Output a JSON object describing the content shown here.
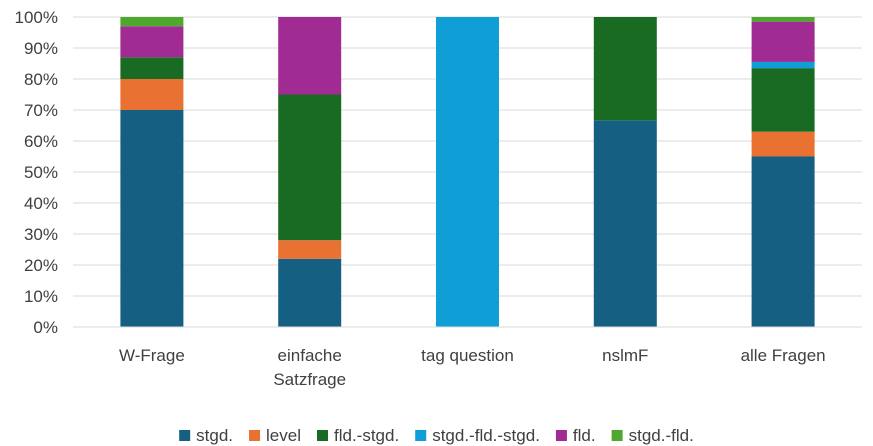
{
  "chart_data": {
    "type": "bar",
    "stacked": true,
    "percent": true,
    "title": "",
    "xlabel": "",
    "ylabel": "",
    "ylim": [
      0,
      100
    ],
    "yticks": [
      "0%",
      "10%",
      "20%",
      "30%",
      "40%",
      "50%",
      "60%",
      "70%",
      "80%",
      "90%",
      "100%"
    ],
    "categories": [
      [
        "W-Frage"
      ],
      [
        "einfache",
        "Satzfrage"
      ],
      [
        "tag question"
      ],
      [
        "nslmF"
      ],
      [
        "alle Fragen"
      ]
    ],
    "grid": true,
    "legend_position": "bottom",
    "series": [
      {
        "name": "stgd.",
        "color": "#156082",
        "values": [
          70,
          22,
          0,
          66.7,
          55
        ]
      },
      {
        "name": "level",
        "color": "#e97132",
        "values": [
          10,
          6,
          0,
          0,
          8
        ]
      },
      {
        "name": "fld.-stgd.",
        "color": "#196b24",
        "values": [
          7,
          47,
          0,
          33.3,
          20.5
        ]
      },
      {
        "name": "stgd.-fld.-stgd.",
        "color": "#0f9ed5",
        "values": [
          0,
          0,
          100,
          0,
          2
        ]
      },
      {
        "name": "fld.",
        "color": "#a02b93",
        "values": [
          10,
          25,
          0,
          0,
          13
        ]
      },
      {
        "name": "stgd.-fld.",
        "color": "#4ea72e",
        "values": [
          3,
          0,
          0,
          0,
          1.5
        ]
      }
    ]
  }
}
